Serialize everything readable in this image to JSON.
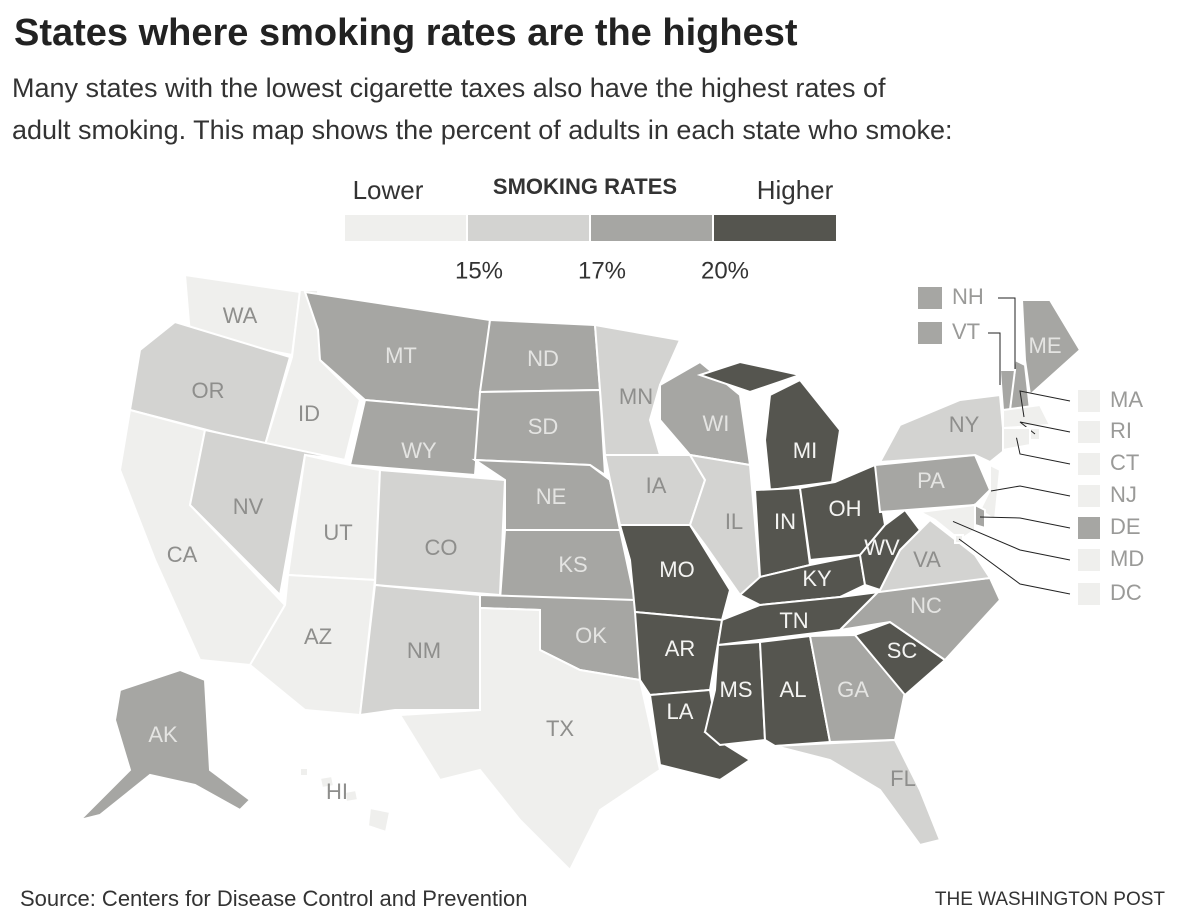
{
  "header": {
    "title": "States where smoking rates are the highest",
    "subtitle": [
      "Many states with the lowest cigarette taxes also have the highest rates of",
      "adult smoking. This map shows the percent of adults in each state who smoke:"
    ]
  },
  "legend": {
    "low": "Lower",
    "title": "SMOKING RATES",
    "high": "Higher",
    "colors": [
      "#efefed",
      "#d3d3d1",
      "#a6a6a3",
      "#55554f"
    ],
    "breaks": [
      {
        "value": 15,
        "label": "15%"
      },
      {
        "value": 17,
        "label": "17%"
      },
      {
        "value": 20,
        "label": "20%"
      }
    ]
  },
  "states": [
    {
      "label": "WA",
      "level": 0
    },
    {
      "label": "OR",
      "level": 1
    },
    {
      "label": "CA",
      "level": 0
    },
    {
      "label": "ID",
      "level": 0
    },
    {
      "label": "NV",
      "level": 1
    },
    {
      "label": "UT",
      "level": 0
    },
    {
      "label": "AZ",
      "level": 0
    },
    {
      "label": "MT",
      "level": 2
    },
    {
      "label": "WY",
      "level": 2
    },
    {
      "label": "CO",
      "level": 1
    },
    {
      "label": "NM",
      "level": 1
    },
    {
      "label": "ND",
      "level": 2
    },
    {
      "label": "SD",
      "level": 2
    },
    {
      "label": "NE",
      "level": 2
    },
    {
      "label": "KS",
      "level": 2
    },
    {
      "label": "OK",
      "level": 2
    },
    {
      "label": "TX",
      "level": 0
    },
    {
      "label": "MN",
      "level": 1
    },
    {
      "label": "IA",
      "level": 1
    },
    {
      "label": "MO",
      "level": 3
    },
    {
      "label": "AR",
      "level": 3
    },
    {
      "label": "LA",
      "level": 3
    },
    {
      "label": "WI",
      "level": 2
    },
    {
      "label": "IL",
      "level": 1
    },
    {
      "label": "MI",
      "level": 3
    },
    {
      "label": "IN",
      "level": 3
    },
    {
      "label": "OH",
      "level": 3
    },
    {
      "label": "KY",
      "level": 3
    },
    {
      "label": "TN",
      "level": 3
    },
    {
      "label": "MS",
      "level": 3
    },
    {
      "label": "AL",
      "level": 3
    },
    {
      "label": "GA",
      "level": 2
    },
    {
      "label": "FL",
      "level": 1
    },
    {
      "label": "SC",
      "level": 3
    },
    {
      "label": "NC",
      "level": 2
    },
    {
      "label": "VA",
      "level": 1
    },
    {
      "label": "WV",
      "level": 3
    },
    {
      "label": "PA",
      "level": 2
    },
    {
      "label": "NY",
      "level": 1
    },
    {
      "label": "AK",
      "level": 2
    },
    {
      "label": "HI",
      "level": 0
    },
    {
      "label": "NH",
      "level": 2
    },
    {
      "label": "VT",
      "level": 2
    },
    {
      "label": "ME",
      "level": 2
    },
    {
      "label": "MA",
      "level": 0
    },
    {
      "label": "RI",
      "level": 0
    },
    {
      "label": "CT",
      "level": 0
    },
    {
      "label": "NJ",
      "level": 0
    },
    {
      "label": "DE",
      "level": 2
    },
    {
      "label": "MD",
      "level": 0
    },
    {
      "label": "DC",
      "level": 0
    }
  ],
  "source": "Source: Centers for Disease Control and Prevention",
  "credit": "THE WASHINGTON POST"
}
